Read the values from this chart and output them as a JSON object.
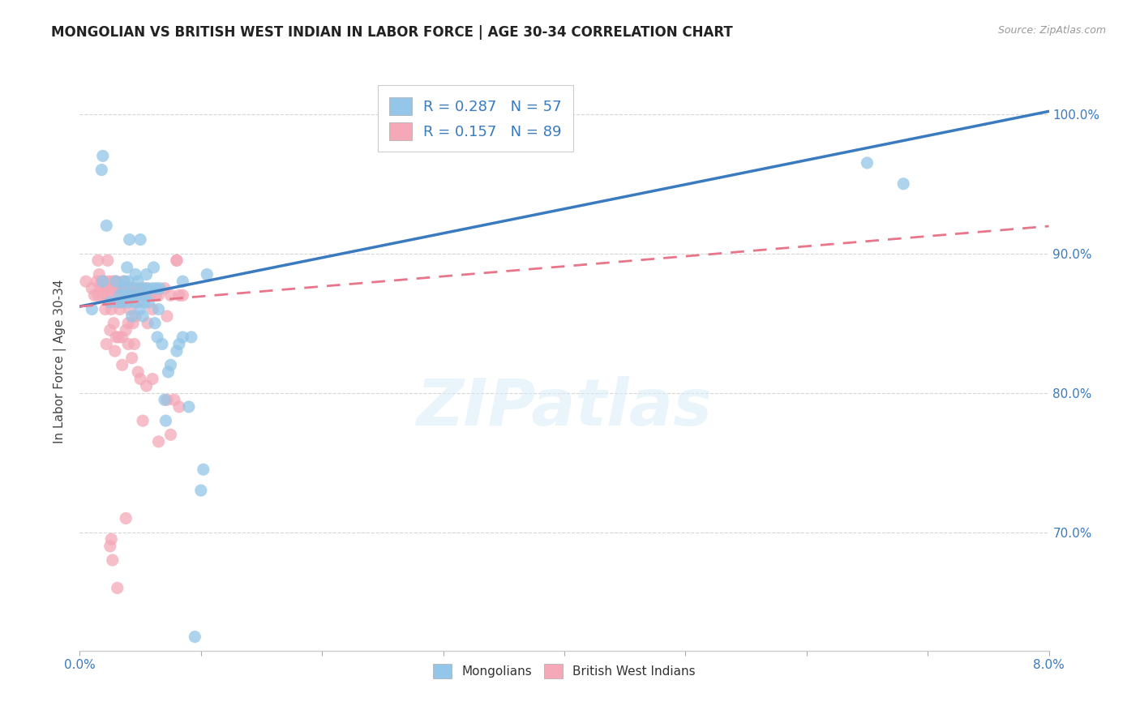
{
  "title": "MONGOLIAN VS BRITISH WEST INDIAN IN LABOR FORCE | AGE 30-34 CORRELATION CHART",
  "source": "Source: ZipAtlas.com",
  "ylabel": "In Labor Force | Age 30-34",
  "watermark": "ZIPatlas",
  "blue_color": "#93c6e8",
  "blue_line_color": "#3a7abf",
  "pink_color": "#f4a8b8",
  "pink_line_color": "#e8758a",
  "mongolians_x": [
    0.001,
    0.0018,
    0.0019,
    0.0019,
    0.0022,
    0.0025,
    0.003,
    0.0032,
    0.0033,
    0.0035,
    0.0036,
    0.0037,
    0.0038,
    0.0039,
    0.004,
    0.004,
    0.0041,
    0.0042,
    0.0043,
    0.0044,
    0.0045,
    0.0046,
    0.0047,
    0.0048,
    0.005,
    0.005,
    0.0051,
    0.0052,
    0.0053,
    0.0054,
    0.0055,
    0.0056,
    0.0057,
    0.006,
    0.0061,
    0.0062,
    0.0063,
    0.0064,
    0.0065,
    0.0066,
    0.0068,
    0.007,
    0.0071,
    0.0073,
    0.0075,
    0.008,
    0.0082,
    0.0085,
    0.009,
    0.0092,
    0.0095,
    0.01,
    0.0102,
    0.0105,
    0.0085,
    0.065,
    0.068
  ],
  "mongolians_y": [
    0.86,
    0.96,
    0.97,
    0.88,
    0.92,
    0.865,
    0.88,
    0.865,
    0.87,
    0.865,
    0.875,
    0.88,
    0.87,
    0.89,
    0.865,
    0.88,
    0.91,
    0.87,
    0.855,
    0.875,
    0.865,
    0.885,
    0.87,
    0.88,
    0.91,
    0.86,
    0.875,
    0.855,
    0.865,
    0.87,
    0.885,
    0.875,
    0.865,
    0.875,
    0.89,
    0.85,
    0.875,
    0.84,
    0.86,
    0.875,
    0.835,
    0.795,
    0.78,
    0.815,
    0.82,
    0.83,
    0.835,
    0.84,
    0.79,
    0.84,
    0.625,
    0.73,
    0.745,
    0.885,
    0.88,
    0.965,
    0.95
  ],
  "bwi_x": [
    0.0005,
    0.001,
    0.0012,
    0.0014,
    0.0015,
    0.0015,
    0.0016,
    0.0017,
    0.0018,
    0.0019,
    0.002,
    0.002,
    0.0021,
    0.0022,
    0.0023,
    0.0023,
    0.0024,
    0.0024,
    0.0025,
    0.0025,
    0.0026,
    0.0027,
    0.0027,
    0.0028,
    0.0029,
    0.003,
    0.003,
    0.0031,
    0.0032,
    0.0033,
    0.0034,
    0.0035,
    0.0036,
    0.0037,
    0.0038,
    0.0039,
    0.004,
    0.0041,
    0.0042,
    0.0043,
    0.0044,
    0.0045,
    0.0046,
    0.0047,
    0.0048,
    0.005,
    0.0052,
    0.0054,
    0.0056,
    0.0058,
    0.006,
    0.0063,
    0.0065,
    0.007,
    0.0072,
    0.0075,
    0.008,
    0.0082,
    0.0085,
    0.008,
    0.0045,
    0.0046,
    0.003,
    0.004,
    0.0035,
    0.0038,
    0.0028,
    0.0025,
    0.0022,
    0.004,
    0.0032,
    0.0029,
    0.0035,
    0.0043,
    0.005,
    0.006,
    0.0055,
    0.0048,
    0.0072,
    0.0078,
    0.0082,
    0.0025,
    0.0052,
    0.0038,
    0.0026,
    0.0065,
    0.0075,
    0.0027,
    0.0031
  ],
  "bwi_y": [
    0.88,
    0.875,
    0.87,
    0.88,
    0.87,
    0.895,
    0.885,
    0.875,
    0.88,
    0.87,
    0.875,
    0.88,
    0.86,
    0.875,
    0.87,
    0.895,
    0.875,
    0.88,
    0.87,
    0.875,
    0.86,
    0.875,
    0.88,
    0.865,
    0.88,
    0.88,
    0.875,
    0.865,
    0.875,
    0.86,
    0.87,
    0.865,
    0.88,
    0.875,
    0.87,
    0.87,
    0.875,
    0.86,
    0.87,
    0.875,
    0.85,
    0.87,
    0.855,
    0.875,
    0.865,
    0.87,
    0.87,
    0.875,
    0.85,
    0.87,
    0.86,
    0.87,
    0.87,
    0.875,
    0.855,
    0.87,
    0.895,
    0.87,
    0.87,
    0.895,
    0.835,
    0.87,
    0.84,
    0.835,
    0.84,
    0.845,
    0.85,
    0.845,
    0.835,
    0.85,
    0.84,
    0.83,
    0.82,
    0.825,
    0.81,
    0.81,
    0.805,
    0.815,
    0.795,
    0.795,
    0.79,
    0.69,
    0.78,
    0.71,
    0.695,
    0.765,
    0.77,
    0.68,
    0.66
  ],
  "xlim": [
    0.0,
    0.08
  ],
  "ylim": [
    0.615,
    1.03
  ],
  "blue_R": 0.287,
  "blue_N": 57,
  "pink_R": 0.157,
  "pink_N": 89,
  "blue_intercept": 0.862,
  "blue_slope": 1.75,
  "pink_intercept": 0.862,
  "pink_slope": 0.72,
  "ytick_vals": [
    0.7,
    0.8,
    0.9,
    1.0
  ],
  "ytick_labels": [
    "70.0%",
    "80.0%",
    "90.0%",
    "100.0%"
  ],
  "grid_color": "#cccccc",
  "title_fontsize": 12,
  "axis_label_color": "#3a7abf",
  "ylabel_color": "#444444"
}
